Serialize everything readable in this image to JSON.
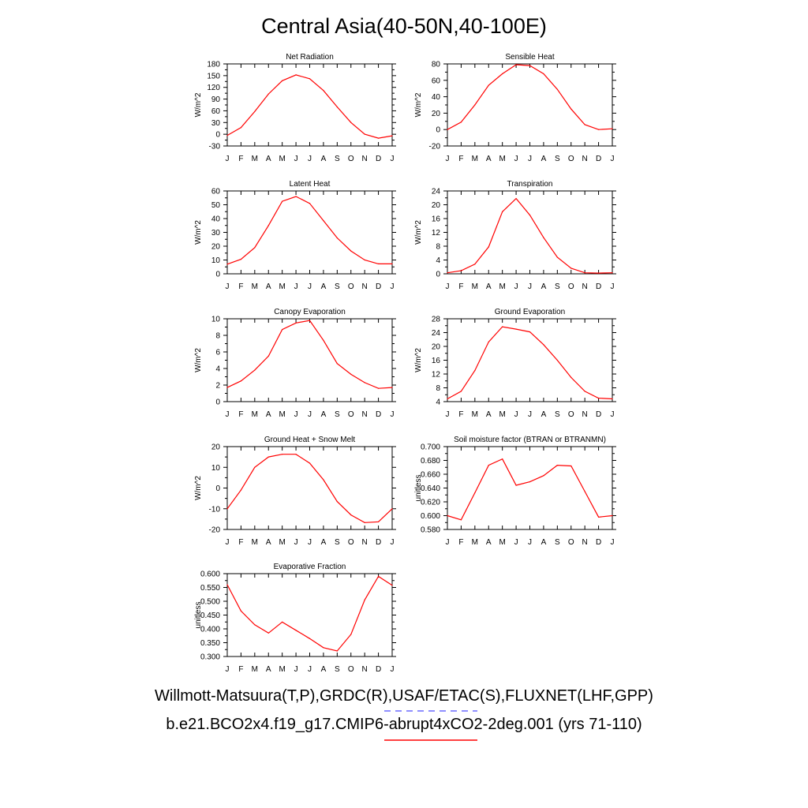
{
  "title": "Central Asia(40-50N,40-100E)",
  "month_labels": [
    "J",
    "F",
    "M",
    "A",
    "M",
    "J",
    "J",
    "A",
    "S",
    "O",
    "N",
    "D",
    "J"
  ],
  "colors": {
    "model": "#ff0000",
    "obs": "#6a6aff"
  },
  "legend": {
    "obs_label": "Willmott-Matsuura(T,P),GRDC(R),USAF/ETAC(S),FLUXNET(LHF,GPP)",
    "case_label": "b.e21.BCO2x4.f19_g17.CMIP6-abrupt4xCO2-2deg.001 (yrs 71-110)"
  },
  "chart_data": [
    {
      "type": "line",
      "title": "Net Radiation",
      "ylabel": "W/m^2",
      "ylim": [
        -30,
        180
      ],
      "yticks": [
        "-30",
        "0",
        "30",
        "60",
        "90",
        "120",
        "150",
        "180"
      ],
      "values": [
        -3,
        17,
        58,
        103,
        137,
        152,
        142,
        112,
        70,
        30,
        0,
        -10,
        -4
      ]
    },
    {
      "type": "line",
      "title": "Sensible Heat",
      "ylabel": "W/m^2",
      "ylim": [
        -20,
        80
      ],
      "yticks": [
        "-20",
        "0",
        "20",
        "40",
        "60",
        "80"
      ],
      "values": [
        0,
        9,
        30,
        54,
        68,
        79,
        78,
        68,
        49,
        25,
        6,
        0,
        1
      ]
    },
    {
      "type": "line",
      "title": "Latent Heat",
      "ylabel": "W/m^2",
      "ylim": [
        0,
        60
      ],
      "yticks": [
        "0",
        "10",
        "20",
        "30",
        "40",
        "50",
        "60"
      ],
      "values": [
        7,
        10.5,
        19,
        35,
        52.5,
        56,
        51,
        38.5,
        26,
        16.5,
        10,
        7.2,
        7.2
      ]
    },
    {
      "type": "line",
      "title": "Transpiration",
      "ylabel": "W/m^2",
      "ylim": [
        0,
        24
      ],
      "yticks": [
        "0",
        "4",
        "8",
        "12",
        "16",
        "20",
        "24"
      ],
      "values": [
        0.3,
        0.9,
        2.8,
        7.8,
        18,
        21.8,
        17,
        10.5,
        4.8,
        1.6,
        0.3,
        0.2,
        0.3
      ]
    },
    {
      "type": "line",
      "title": "Canopy Evaporation",
      "ylabel": "W/m^2",
      "ylim": [
        0,
        10
      ],
      "yticks": [
        "0",
        "2",
        "4",
        "6",
        "8",
        "10"
      ],
      "values": [
        1.7,
        2.5,
        3.8,
        5.5,
        8.7,
        9.5,
        9.8,
        7.4,
        4.6,
        3.3,
        2.3,
        1.6,
        1.7
      ]
    },
    {
      "type": "line",
      "title": "Ground Evaporation",
      "ylabel": "W/m^2",
      "ylim": [
        4,
        28
      ],
      "yticks": [
        "4",
        "8",
        "12",
        "16",
        "20",
        "24",
        "28"
      ],
      "values": [
        4.8,
        7,
        13,
        21.3,
        25.7,
        25,
        24.2,
        20.5,
        16,
        11,
        7,
        5,
        4.8
      ]
    },
    {
      "type": "line",
      "title": "Ground Heat + Snow Melt",
      "ylabel": "W/m^2",
      "ylim": [
        -20,
        20
      ],
      "yticks": [
        "-20",
        "-10",
        "0",
        "10",
        "20"
      ],
      "values": [
        -10,
        -1,
        10,
        15,
        16.3,
        16.3,
        12,
        4,
        -6.5,
        -13,
        -16.7,
        -16.3,
        -10
      ]
    },
    {
      "type": "line",
      "title": "Soil moisture factor (BTRAN or BTRANMN)",
      "ylabel": "unitless",
      "ylim": [
        0.58,
        0.7
      ],
      "yticks": [
        "0.580",
        "0.600",
        "0.620",
        "0.640",
        "0.660",
        "0.680",
        "0.700"
      ],
      "values": [
        0.6,
        0.594,
        0.633,
        0.673,
        0.682,
        0.644,
        0.649,
        0.658,
        0.673,
        0.672,
        0.635,
        0.598,
        0.6
      ]
    },
    {
      "type": "line",
      "title": "Evaporative Fraction",
      "ylabel": "unitless",
      "ylim": [
        0.3,
        0.6
      ],
      "yticks": [
        "0.300",
        "0.350",
        "0.400",
        "0.450",
        "0.500",
        "0.550",
        "0.600"
      ],
      "values": [
        0.56,
        0.465,
        0.415,
        0.385,
        0.425,
        0.395,
        0.365,
        0.332,
        0.32,
        0.38,
        0.505,
        0.59,
        0.558
      ]
    }
  ]
}
